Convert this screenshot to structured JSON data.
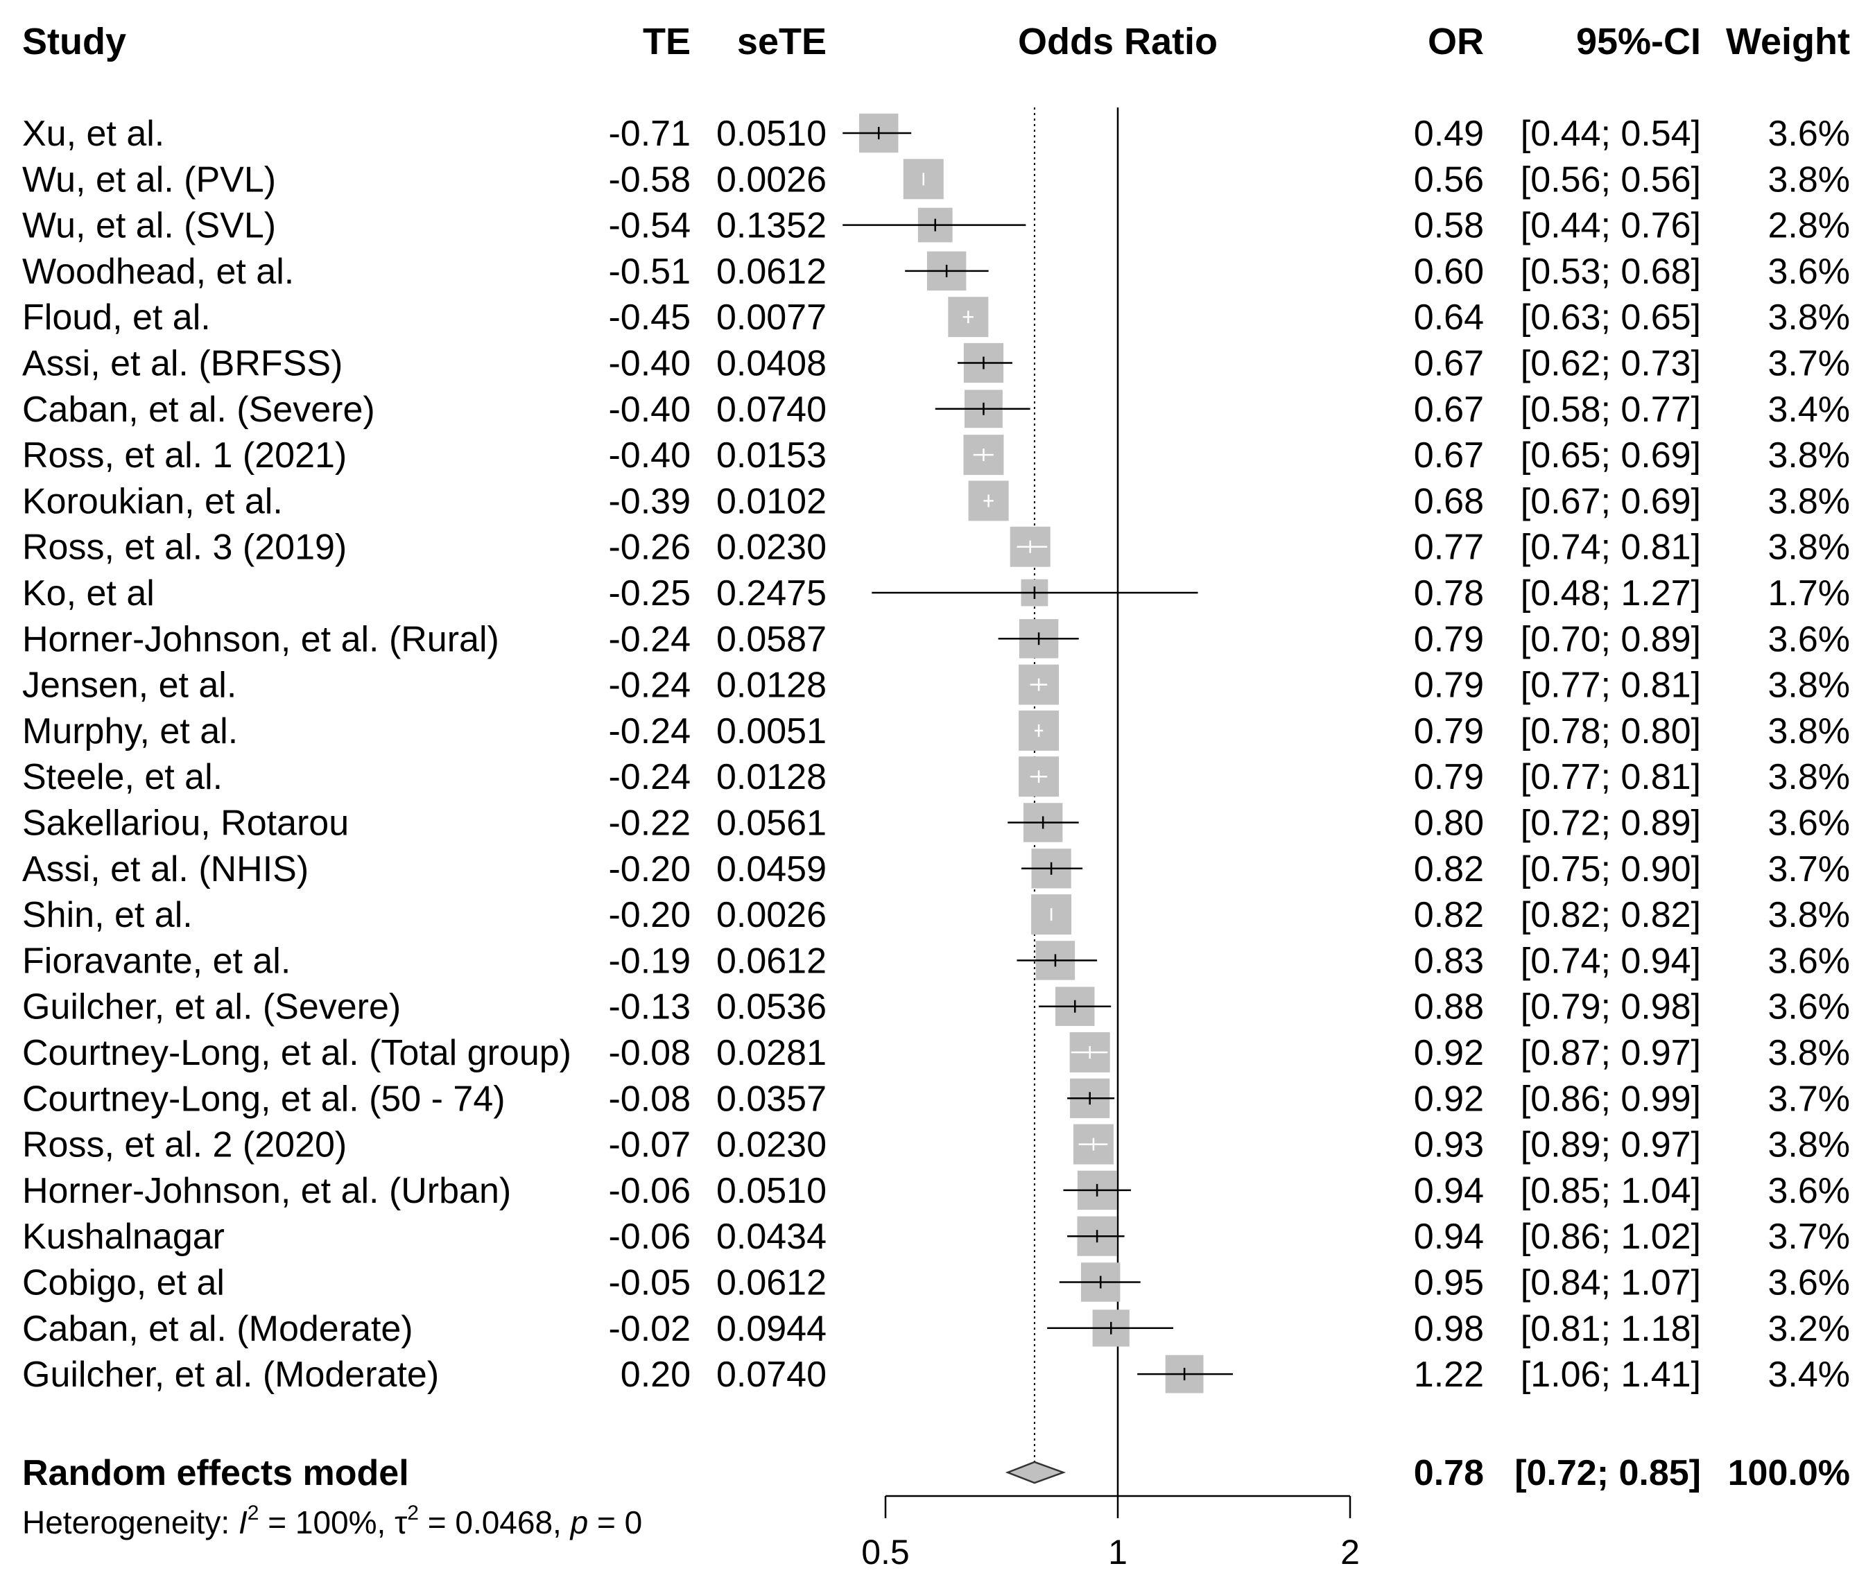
{
  "chart_data": {
    "type": "forest",
    "title": "Odds Ratio",
    "scale": "log",
    "reference_line": 1,
    "pooled_line": 0.78,
    "x_ticks": [
      0.5,
      1,
      2
    ],
    "x_tick_labels": [
      "0.5",
      "1",
      "2"
    ],
    "columns": {
      "study": "Study",
      "te": "TE",
      "sete": "seTE",
      "plot": "Odds Ratio",
      "or": "OR",
      "ci": "95%-CI",
      "weight": "Weight"
    },
    "studies": [
      {
        "study": "Xu, et al.",
        "te": "-0.71",
        "sete": "0.0510",
        "or": "0.49",
        "ci": "[0.44; 0.54]",
        "weight": "3.6%",
        "or_val": 0.49,
        "lo": 0.44,
        "hi": 0.54,
        "w": 3.6
      },
      {
        "study": "Wu, et al. (PVL)",
        "te": "-0.58",
        "sete": "0.0026",
        "or": "0.56",
        "ci": "[0.56; 0.56]",
        "weight": "3.8%",
        "or_val": 0.56,
        "lo": 0.56,
        "hi": 0.56,
        "w": 3.8
      },
      {
        "study": "Wu, et al. (SVL)",
        "te": "-0.54",
        "sete": "0.1352",
        "or": "0.58",
        "ci": "[0.44; 0.76]",
        "weight": "2.8%",
        "or_val": 0.58,
        "lo": 0.44,
        "hi": 0.76,
        "w": 2.8
      },
      {
        "study": "Woodhead, et al.",
        "te": "-0.51",
        "sete": "0.0612",
        "or": "0.60",
        "ci": "[0.53; 0.68]",
        "weight": "3.6%",
        "or_val": 0.6,
        "lo": 0.53,
        "hi": 0.68,
        "w": 3.6
      },
      {
        "study": "Floud, et al.",
        "te": "-0.45",
        "sete": "0.0077",
        "or": "0.64",
        "ci": "[0.63; 0.65]",
        "weight": "3.8%",
        "or_val": 0.64,
        "lo": 0.63,
        "hi": 0.65,
        "w": 3.8
      },
      {
        "study": "Assi, et al. (BRFSS)",
        "te": "-0.40",
        "sete": "0.0408",
        "or": "0.67",
        "ci": "[0.62; 0.73]",
        "weight": "3.7%",
        "or_val": 0.67,
        "lo": 0.62,
        "hi": 0.73,
        "w": 3.7
      },
      {
        "study": "Caban, et al. (Severe)",
        "te": "-0.40",
        "sete": "0.0740",
        "or": "0.67",
        "ci": "[0.58; 0.77]",
        "weight": "3.4%",
        "or_val": 0.67,
        "lo": 0.58,
        "hi": 0.77,
        "w": 3.4
      },
      {
        "study": "Ross, et al. 1 (2021)",
        "te": "-0.40",
        "sete": "0.0153",
        "or": "0.67",
        "ci": "[0.65; 0.69]",
        "weight": "3.8%",
        "or_val": 0.67,
        "lo": 0.65,
        "hi": 0.69,
        "w": 3.8
      },
      {
        "study": "Koroukian, et al.",
        "te": "-0.39",
        "sete": "0.0102",
        "or": "0.68",
        "ci": "[0.67; 0.69]",
        "weight": "3.8%",
        "or_val": 0.68,
        "lo": 0.67,
        "hi": 0.69,
        "w": 3.8
      },
      {
        "study": "Ross, et al. 3 (2019)",
        "te": "-0.26",
        "sete": "0.0230",
        "or": "0.77",
        "ci": "[0.74; 0.81]",
        "weight": "3.8%",
        "or_val": 0.77,
        "lo": 0.74,
        "hi": 0.81,
        "w": 3.8
      },
      {
        "study": "Ko, et al",
        "te": "-0.25",
        "sete": "0.2475",
        "or": "0.78",
        "ci": "[0.48; 1.27]",
        "weight": "1.7%",
        "or_val": 0.78,
        "lo": 0.48,
        "hi": 1.27,
        "w": 1.7
      },
      {
        "study": "Horner-Johnson, et al. (Rural)",
        "te": "-0.24",
        "sete": "0.0587",
        "or": "0.79",
        "ci": "[0.70; 0.89]",
        "weight": "3.6%",
        "or_val": 0.79,
        "lo": 0.7,
        "hi": 0.89,
        "w": 3.6
      },
      {
        "study": "Jensen, et al.",
        "te": "-0.24",
        "sete": "0.0128",
        "or": "0.79",
        "ci": "[0.77; 0.81]",
        "weight": "3.8%",
        "or_val": 0.79,
        "lo": 0.77,
        "hi": 0.81,
        "w": 3.8
      },
      {
        "study": "Murphy, et al.",
        "te": "-0.24",
        "sete": "0.0051",
        "or": "0.79",
        "ci": "[0.78; 0.80]",
        "weight": "3.8%",
        "or_val": 0.79,
        "lo": 0.78,
        "hi": 0.8,
        "w": 3.8
      },
      {
        "study": "Steele, et al.",
        "te": "-0.24",
        "sete": "0.0128",
        "or": "0.79",
        "ci": "[0.77; 0.81]",
        "weight": "3.8%",
        "or_val": 0.79,
        "lo": 0.77,
        "hi": 0.81,
        "w": 3.8
      },
      {
        "study": "Sakellariou, Rotarou",
        "te": "-0.22",
        "sete": "0.0561",
        "or": "0.80",
        "ci": "[0.72; 0.89]",
        "weight": "3.6%",
        "or_val": 0.8,
        "lo": 0.72,
        "hi": 0.89,
        "w": 3.6
      },
      {
        "study": "Assi, et al. (NHIS)",
        "te": "-0.20",
        "sete": "0.0459",
        "or": "0.82",
        "ci": "[0.75; 0.90]",
        "weight": "3.7%",
        "or_val": 0.82,
        "lo": 0.75,
        "hi": 0.9,
        "w": 3.7
      },
      {
        "study": "Shin, et al.",
        "te": "-0.20",
        "sete": "0.0026",
        "or": "0.82",
        "ci": "[0.82; 0.82]",
        "weight": "3.8%",
        "or_val": 0.82,
        "lo": 0.82,
        "hi": 0.82,
        "w": 3.8
      },
      {
        "study": "Fioravante, et al.",
        "te": "-0.19",
        "sete": "0.0612",
        "or": "0.83",
        "ci": "[0.74; 0.94]",
        "weight": "3.6%",
        "or_val": 0.83,
        "lo": 0.74,
        "hi": 0.94,
        "w": 3.6
      },
      {
        "study": "Guilcher, et al. (Severe)",
        "te": "-0.13",
        "sete": "0.0536",
        "or": "0.88",
        "ci": "[0.79; 0.98]",
        "weight": "3.6%",
        "or_val": 0.88,
        "lo": 0.79,
        "hi": 0.98,
        "w": 3.6
      },
      {
        "study": "Courtney-Long, et al. (Total group)",
        "te": "-0.08",
        "sete": "0.0281",
        "or": "0.92",
        "ci": "[0.87; 0.97]",
        "weight": "3.8%",
        "or_val": 0.92,
        "lo": 0.87,
        "hi": 0.97,
        "w": 3.8
      },
      {
        "study": "Courtney-Long, et al. (50 - 74)",
        "te": "-0.08",
        "sete": "0.0357",
        "or": "0.92",
        "ci": "[0.86; 0.99]",
        "weight": "3.7%",
        "or_val": 0.92,
        "lo": 0.86,
        "hi": 0.99,
        "w": 3.7
      },
      {
        "study": "Ross, et al. 2 (2020)",
        "te": "-0.07",
        "sete": "0.0230",
        "or": "0.93",
        "ci": "[0.89; 0.97]",
        "weight": "3.8%",
        "or_val": 0.93,
        "lo": 0.89,
        "hi": 0.97,
        "w": 3.8
      },
      {
        "study": "Horner-Johnson, et al. (Urban)",
        "te": "-0.06",
        "sete": "0.0510",
        "or": "0.94",
        "ci": "[0.85; 1.04]",
        "weight": "3.6%",
        "or_val": 0.94,
        "lo": 0.85,
        "hi": 1.04,
        "w": 3.6
      },
      {
        "study": "Kushalnagar",
        "te": "-0.06",
        "sete": "0.0434",
        "or": "0.94",
        "ci": "[0.86; 1.02]",
        "weight": "3.7%",
        "or_val": 0.94,
        "lo": 0.86,
        "hi": 1.02,
        "w": 3.7
      },
      {
        "study": "Cobigo, et al",
        "te": "-0.05",
        "sete": "0.0612",
        "or": "0.95",
        "ci": "[0.84; 1.07]",
        "weight": "3.6%",
        "or_val": 0.95,
        "lo": 0.84,
        "hi": 1.07,
        "w": 3.6
      },
      {
        "study": "Caban, et al. (Moderate)",
        "te": "-0.02",
        "sete": "0.0944",
        "or": "0.98",
        "ci": "[0.81; 1.18]",
        "weight": "3.2%",
        "or_val": 0.98,
        "lo": 0.81,
        "hi": 1.18,
        "w": 3.2
      },
      {
        "study": "Guilcher, et al. (Moderate)",
        "te": "0.20",
        "sete": "0.0740",
        "or": "1.22",
        "ci": "[1.06; 1.41]",
        "weight": "3.4%",
        "or_val": 1.22,
        "lo": 1.06,
        "hi": 1.41,
        "w": 3.4
      }
    ],
    "pooled": {
      "label": "Random effects model",
      "or": "0.78",
      "ci": "[0.72; 0.85]",
      "weight": "100.0%",
      "or_val": 0.78,
      "lo": 0.72,
      "hi": 0.85
    },
    "heterogeneity": {
      "prefix": "Heterogeneity: ",
      "i2_symbol": "I",
      "i2_sup": "2",
      "i2_value": " = 100%, ",
      "tau_symbol": "τ",
      "tau_sup": "2",
      "tau_value": " = 0.0468, ",
      "p_symbol": "p",
      "p_value": " = 0"
    }
  }
}
